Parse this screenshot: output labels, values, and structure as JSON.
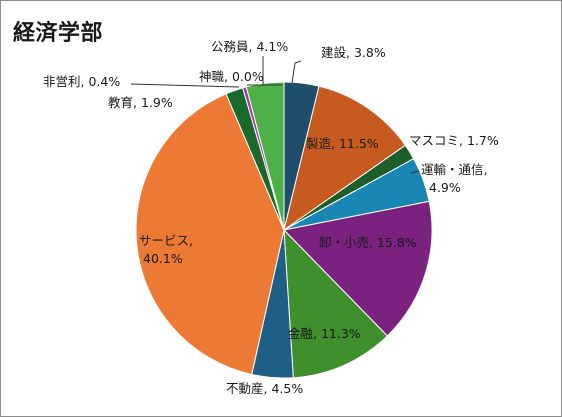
{
  "chart_data": {
    "type": "pie",
    "title": "経済学部",
    "start_angle_deg": 0,
    "direction": "clockwise",
    "slices": [
      {
        "label": "建設, 3.8%",
        "value": 3.8,
        "color": "#1f4e6b"
      },
      {
        "label": "製造, 11.5%",
        "value": 11.5,
        "color": "#c65a1f"
      },
      {
        "label": "マスコミ, 1.7%",
        "value": 1.7,
        "color": "#1d5e2a"
      },
      {
        "label": "運輸・通信, 4.9%",
        "value": 4.9,
        "color": "#1a86b4"
      },
      {
        "label": "卸・小売, 15.8%",
        "value": 15.8,
        "color": "#7b2180"
      },
      {
        "label": "金融, 11.3%",
        "value": 11.3,
        "color": "#3f8f2c"
      },
      {
        "label": "不動産, 4.5%",
        "value": 4.5,
        "color": "#1f5f85"
      },
      {
        "label": "サービス, 40.1%",
        "value": 40.1,
        "color": "#ec7a35"
      },
      {
        "label": "教育, 1.9%",
        "value": 1.9,
        "color": "#1a6a2e"
      },
      {
        "label": "非営利, 0.4%",
        "value": 0.4,
        "color": "#a637a8"
      },
      {
        "label": "神職, 0.0%",
        "value": 0.0,
        "color": "#5a5a5a"
      },
      {
        "label": "公務員, 4.1%",
        "value": 4.1,
        "color": "#4eb147"
      }
    ]
  }
}
